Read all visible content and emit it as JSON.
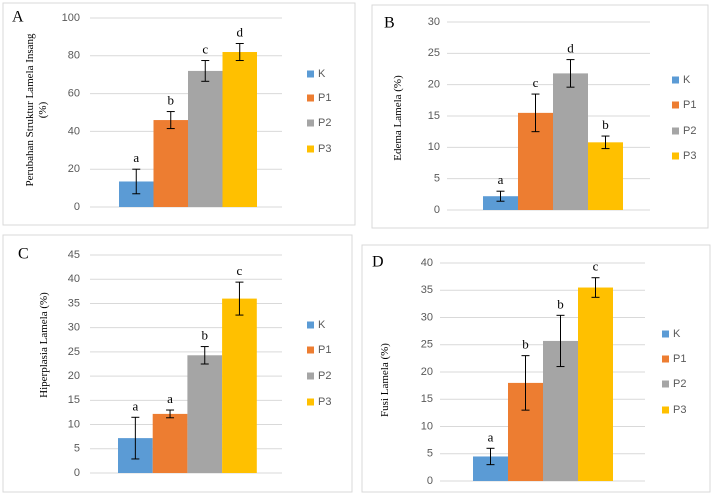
{
  "chart_data": [
    {
      "type": "bar",
      "panel": "A",
      "ylabel": [
        "Perubahan Struktur Lamela Insang",
        "(%)"
      ],
      "categories": [
        "K",
        "P1",
        "P2",
        "P3"
      ],
      "colors": [
        "#5b9bd5",
        "#ed7d31",
        "#a5a5a5",
        "#ffc000"
      ],
      "values": [
        13.5,
        46,
        72,
        82
      ],
      "errors": [
        6.5,
        4.5,
        5.5,
        4.5
      ],
      "annotations": [
        "a",
        "b",
        "c",
        "d"
      ],
      "ylim": [
        0,
        100
      ],
      "yticks": [
        0,
        20,
        40,
        60,
        80,
        100
      ],
      "grid": true
    },
    {
      "type": "bar",
      "panel": "B",
      "ylabel": [
        "Edema Lamela (%)"
      ],
      "categories": [
        "K",
        "P1",
        "P2",
        "P3"
      ],
      "colors": [
        "#5b9bd5",
        "#ed7d31",
        "#a5a5a5",
        "#ffc000"
      ],
      "values": [
        2.2,
        15.5,
        21.8,
        10.8
      ],
      "errors": [
        0.8,
        3,
        2.2,
        1
      ],
      "annotations": [
        "a",
        "c",
        "d",
        "b"
      ],
      "ylim": [
        0,
        30
      ],
      "yticks": [
        0,
        5,
        10,
        15,
        20,
        25,
        30
      ],
      "grid": true
    },
    {
      "type": "bar",
      "panel": "C",
      "ylabel": [
        "Hiperplasia Lamela (%)"
      ],
      "categories": [
        "K",
        "P1",
        "P2",
        "P3"
      ],
      "colors": [
        "#5b9bd5",
        "#ed7d31",
        "#a5a5a5",
        "#ffc000"
      ],
      "values": [
        7.2,
        12.2,
        24.3,
        36
      ],
      "errors": [
        4.3,
        0.8,
        1.8,
        3.4
      ],
      "annotations": [
        "a",
        "a",
        "b",
        "c"
      ],
      "ylim": [
        0,
        45
      ],
      "yticks": [
        0,
        5,
        10,
        15,
        20,
        25,
        30,
        35,
        40,
        45
      ],
      "grid": true
    },
    {
      "type": "bar",
      "panel": "D",
      "ylabel": [
        "Fusi Lamela (%)"
      ],
      "categories": [
        "K",
        "P1",
        "P2",
        "P3"
      ],
      "colors": [
        "#5b9bd5",
        "#ed7d31",
        "#a5a5a5",
        "#ffc000"
      ],
      "values": [
        4.5,
        18,
        25.7,
        35.5
      ],
      "errors": [
        1.5,
        5,
        4.7,
        1.8
      ],
      "annotations": [
        "a",
        "b",
        "b",
        "c"
      ],
      "ylim": [
        0,
        40
      ],
      "yticks": [
        0,
        5,
        10,
        15,
        20,
        25,
        30,
        35,
        40
      ],
      "grid": true
    }
  ]
}
